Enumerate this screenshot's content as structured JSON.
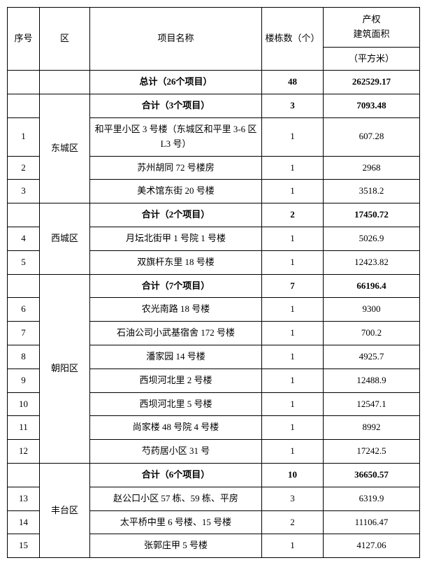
{
  "header": {
    "seq": "序号",
    "area": "区",
    "name": "项目名称",
    "count": "楼栋数（个）",
    "size_l1": "产权",
    "size_l2": "建筑面积",
    "size_l3": "（平方米）"
  },
  "total": {
    "name": "总计（26个项目）",
    "count": "48",
    "size": "262529.17"
  },
  "sections": [
    {
      "area": "东城区",
      "subtotal": {
        "name": "合计（3个项目）",
        "count": "3",
        "size": "7093.48"
      },
      "rows": [
        {
          "seq": "1",
          "name": "和平里小区 3 号楼（东城区和平里 3-6 区 L3 号）",
          "count": "1",
          "size": "607.28"
        },
        {
          "seq": "2",
          "name": "苏州胡同 72 号楼房",
          "count": "1",
          "size": "2968"
        },
        {
          "seq": "3",
          "name": "美术馆东街 20 号楼",
          "count": "1",
          "size": "3518.2"
        }
      ]
    },
    {
      "area": "西城区",
      "subtotal": {
        "name": "合计（2个项目）",
        "count": "2",
        "size": "17450.72"
      },
      "rows": [
        {
          "seq": "4",
          "name": "月坛北街甲 1 号院 1 号楼",
          "count": "1",
          "size": "5026.9"
        },
        {
          "seq": "5",
          "name": "双旗杆东里 18 号楼",
          "count": "1",
          "size": "12423.82"
        }
      ]
    },
    {
      "area": "朝阳区",
      "subtotal": {
        "name": "合计（7个项目）",
        "count": "7",
        "size": "66196.4"
      },
      "rows": [
        {
          "seq": "6",
          "name": "农光南路 18 号楼",
          "count": "1",
          "size": "9300"
        },
        {
          "seq": "7",
          "name": "石油公司小武基宿舍 172 号楼",
          "count": "1",
          "size": "700.2"
        },
        {
          "seq": "8",
          "name": "潘家园 14 号楼",
          "count": "1",
          "size": "4925.7"
        },
        {
          "seq": "9",
          "name": "西坝河北里 2 号楼",
          "count": "1",
          "size": "12488.9"
        },
        {
          "seq": "10",
          "name": "西坝河北里 5 号楼",
          "count": "1",
          "size": "12547.1"
        },
        {
          "seq": "11",
          "name": "尚家楼 48 号院 4 号楼",
          "count": "1",
          "size": "8992"
        },
        {
          "seq": "12",
          "name": "芍药居小区 31 号",
          "count": "1",
          "size": "17242.5"
        }
      ]
    },
    {
      "area": "丰台区",
      "subtotal": {
        "name": "合计（6个项目）",
        "count": "10",
        "size": "36650.57"
      },
      "rows": [
        {
          "seq": "13",
          "name": "赵公口小区 57 栋、59 栋、平房",
          "count": "3",
          "size": "6319.9"
        },
        {
          "seq": "14",
          "name": "太平桥中里 6 号楼、15 号楼",
          "count": "2",
          "size": "11106.47"
        },
        {
          "seq": "15",
          "name": "张郭庄甲 5 号楼",
          "count": "1",
          "size": "4127.06"
        }
      ]
    }
  ]
}
